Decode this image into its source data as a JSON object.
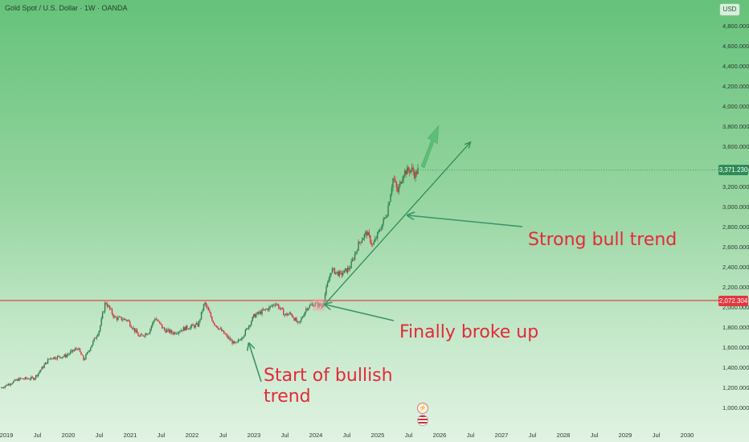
{
  "header": {
    "symbol_title": "Gold Spot / U.S. Dollar · 1W · OANDA",
    "currency_badge": "USD"
  },
  "price_tags": {
    "current": "3,371.230",
    "level": "2,072.304"
  },
  "annotations": {
    "strong_bull": "Strong bull trend",
    "broke_up": "Finally broke up",
    "bullish_start_line1": "Start of bullish",
    "bullish_start_line2": "trend"
  },
  "colors": {
    "annotation": "#e3293a",
    "level_line": "#e0383e",
    "trend_line": "#2e8b57",
    "arrow": "#3a9468",
    "candle_up": "#2f7d4f",
    "candle_down": "#d8333d"
  },
  "icons": [
    "lightning-event-icon",
    "us-flag-event-icon"
  ],
  "chart_data": {
    "type": "candlestick",
    "title": "Gold Spot / U.S. Dollar · 1W · OANDA",
    "y_axis": {
      "ticks": [
        1000,
        1200,
        1400,
        1600,
        1800,
        2000,
        2200,
        2400,
        2600,
        2800,
        3000,
        3200,
        3400,
        3600,
        3800,
        4000,
        4200,
        4400,
        4600,
        4800
      ],
      "tick_labels": [
        "1,000.000",
        "1,200.000",
        "1,400.000",
        "1,600.000",
        "1,800.000",
        "2,000.000",
        "2,200.000",
        "2,400.000",
        "2,600.000",
        "2,800.000",
        "3,000.000",
        "3,200.000",
        "3,400.000",
        "3,600.000",
        "3,800.000",
        "4,000.000",
        "4,200.000",
        "4,400.000",
        "4,600.000",
        "4,800.000"
      ]
    },
    "x_axis": {
      "ticks": [
        2019.0,
        2019.5,
        2020.0,
        2020.5,
        2021.0,
        2021.5,
        2022.0,
        2022.5,
        2023.0,
        2023.5,
        2024.0,
        2024.5,
        2025.0,
        2025.5,
        2026.0,
        2026.5,
        2027.0,
        2027.5,
        2028.0,
        2028.5,
        2029.0,
        2029.5,
        2030.0
      ],
      "tick_labels": [
        "2019",
        "Jul",
        "2020",
        "Jul",
        "2021",
        "Jul",
        "2022",
        "Jul",
        "2023",
        "Jul",
        "2024",
        "Jul",
        "2025",
        "Jul",
        "2026",
        "Jul",
        "2027",
        "Jul",
        "2028",
        "Jul",
        "2029",
        "Jul",
        "2030"
      ]
    },
    "price_path": [
      [
        2018.9,
        1200
      ],
      [
        2019.2,
        1290
      ],
      [
        2019.45,
        1300
      ],
      [
        2019.7,
        1500
      ],
      [
        2019.95,
        1520
      ],
      [
        2020.15,
        1600
      ],
      [
        2020.25,
        1480
      ],
      [
        2020.5,
        1780
      ],
      [
        2020.6,
        2060
      ],
      [
        2020.75,
        1900
      ],
      [
        2020.95,
        1880
      ],
      [
        2021.15,
        1710
      ],
      [
        2021.3,
        1760
      ],
      [
        2021.4,
        1900
      ],
      [
        2021.55,
        1780
      ],
      [
        2021.7,
        1750
      ],
      [
        2021.9,
        1800
      ],
      [
        2022.1,
        1830
      ],
      [
        2022.2,
        2050
      ],
      [
        2022.35,
        1850
      ],
      [
        2022.55,
        1720
      ],
      [
        2022.7,
        1630
      ],
      [
        2022.85,
        1750
      ],
      [
        2023.0,
        1920
      ],
      [
        2023.25,
        2000
      ],
      [
        2023.35,
        2050
      ],
      [
        2023.5,
        1930
      ],
      [
        2023.6,
        1940
      ],
      [
        2023.72,
        1830
      ],
      [
        2023.85,
        2000
      ],
      [
        2023.97,
        2040
      ],
      [
        2024.1,
        2020
      ],
      [
        2024.25,
        2380
      ],
      [
        2024.4,
        2330
      ],
      [
        2024.55,
        2400
      ],
      [
        2024.7,
        2650
      ],
      [
        2024.82,
        2750
      ],
      [
        2024.92,
        2620
      ],
      [
        2025.05,
        2800
      ],
      [
        2025.15,
        2950
      ],
      [
        2025.25,
        3300
      ],
      [
        2025.32,
        3150
      ],
      [
        2025.42,
        3350
      ],
      [
        2025.55,
        3380
      ],
      [
        2025.6,
        3320
      ],
      [
        2025.65,
        3370
      ]
    ],
    "current_price": 3371.23,
    "horizontal_level": 2072.304,
    "trendline": [
      [
        2024.08,
        1990
      ],
      [
        2026.5,
        3650
      ]
    ]
  }
}
